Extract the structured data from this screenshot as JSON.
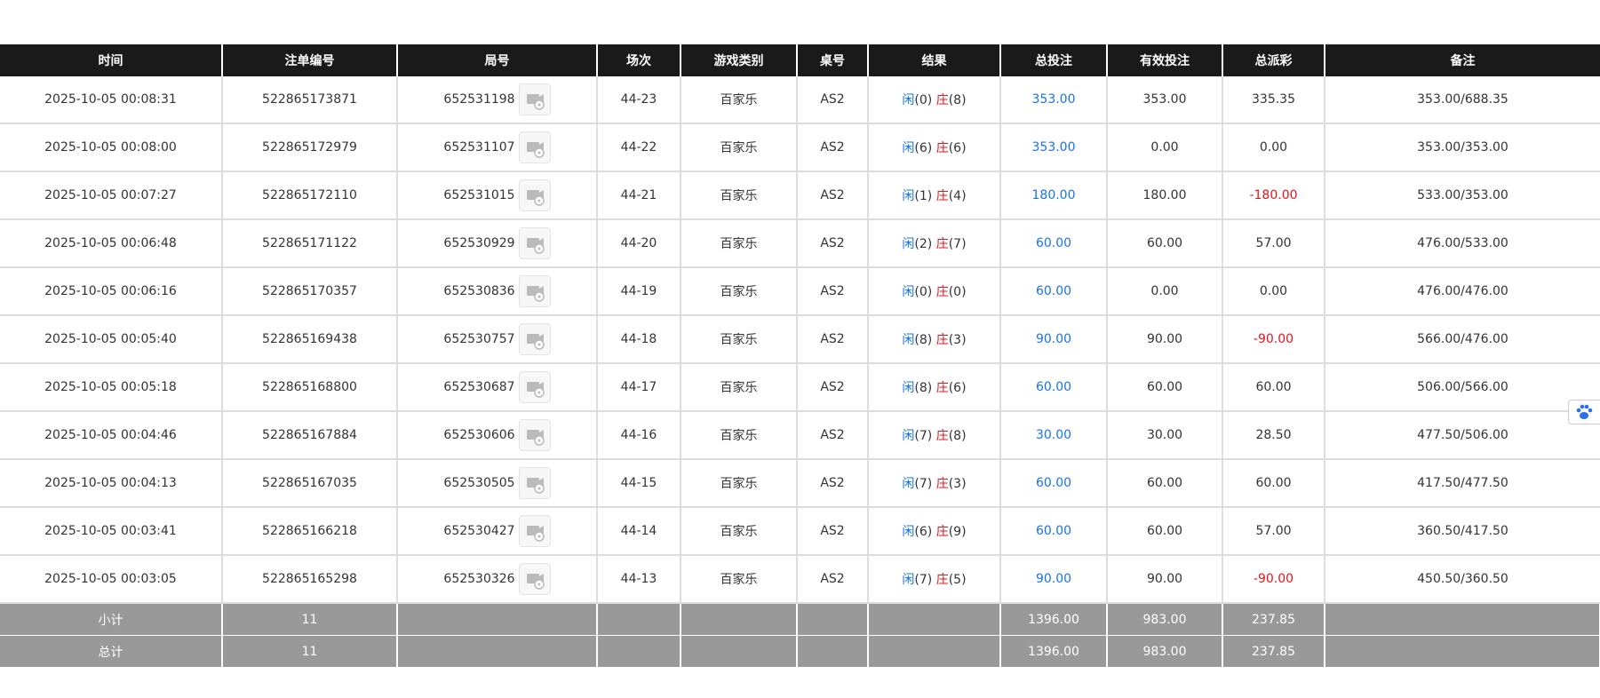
{
  "header": {
    "columns": [
      "时间",
      "注单编号",
      "局号",
      "场次",
      "游戏类别",
      "桌号",
      "结果",
      "总投注",
      "有效投注",
      "总派彩",
      "备注"
    ]
  },
  "rows": [
    {
      "time": "2025-10-05 00:08:31",
      "order_no": "522865173871",
      "round_no": "652531198",
      "session": "44-23",
      "game_type": "百家乐",
      "table": "AS2",
      "result": {
        "player": "闲",
        "player_score": "(0)",
        "banker": "庄",
        "banker_score": "(8)"
      },
      "total_bet": "353.00",
      "valid_bet": "353.00",
      "payout": "335.35",
      "note": "353.00/688.35"
    },
    {
      "time": "2025-10-05 00:08:00",
      "order_no": "522865172979",
      "round_no": "652531107",
      "session": "44-22",
      "game_type": "百家乐",
      "table": "AS2",
      "result": {
        "player": "闲",
        "player_score": "(6)",
        "banker": "庄",
        "banker_score": "(6)"
      },
      "total_bet": "353.00",
      "valid_bet": "0.00",
      "payout": "0.00",
      "note": "353.00/353.00"
    },
    {
      "time": "2025-10-05 00:07:27",
      "order_no": "522865172110",
      "round_no": "652531015",
      "session": "44-21",
      "game_type": "百家乐",
      "table": "AS2",
      "result": {
        "player": "闲",
        "player_score": "(1)",
        "banker": "庄",
        "banker_score": "(4)"
      },
      "total_bet": "180.00",
      "valid_bet": "180.00",
      "payout": "-180.00",
      "note": "533.00/353.00"
    },
    {
      "time": "2025-10-05 00:06:48",
      "order_no": "522865171122",
      "round_no": "652530929",
      "session": "44-20",
      "game_type": "百家乐",
      "table": "AS2",
      "result": {
        "player": "闲",
        "player_score": "(2)",
        "banker": "庄",
        "banker_score": "(7)"
      },
      "total_bet": "60.00",
      "valid_bet": "60.00",
      "payout": "57.00",
      "note": "476.00/533.00"
    },
    {
      "time": "2025-10-05 00:06:16",
      "order_no": "522865170357",
      "round_no": "652530836",
      "session": "44-19",
      "game_type": "百家乐",
      "table": "AS2",
      "result": {
        "player": "闲",
        "player_score": "(0)",
        "banker": "庄",
        "banker_score": "(0)"
      },
      "total_bet": "60.00",
      "valid_bet": "0.00",
      "payout": "0.00",
      "note": "476.00/476.00"
    },
    {
      "time": "2025-10-05 00:05:40",
      "order_no": "522865169438",
      "round_no": "652530757",
      "session": "44-18",
      "game_type": "百家乐",
      "table": "AS2",
      "result": {
        "player": "闲",
        "player_score": "(8)",
        "banker": "庄",
        "banker_score": "(3)"
      },
      "total_bet": "90.00",
      "valid_bet": "90.00",
      "payout": "-90.00",
      "note": "566.00/476.00"
    },
    {
      "time": "2025-10-05 00:05:18",
      "order_no": "522865168800",
      "round_no": "652530687",
      "session": "44-17",
      "game_type": "百家乐",
      "table": "AS2",
      "result": {
        "player": "闲",
        "player_score": "(8)",
        "banker": "庄",
        "banker_score": "(6)"
      },
      "total_bet": "60.00",
      "valid_bet": "60.00",
      "payout": "60.00",
      "note": "506.00/566.00"
    },
    {
      "time": "2025-10-05 00:04:46",
      "order_no": "522865167884",
      "round_no": "652530606",
      "session": "44-16",
      "game_type": "百家乐",
      "table": "AS2",
      "result": {
        "player": "闲",
        "player_score": "(7)",
        "banker": "庄",
        "banker_score": "(8)"
      },
      "total_bet": "30.00",
      "valid_bet": "30.00",
      "payout": "28.50",
      "note": "477.50/506.00"
    },
    {
      "time": "2025-10-05 00:04:13",
      "order_no": "522865167035",
      "round_no": "652530505",
      "session": "44-15",
      "game_type": "百家乐",
      "table": "AS2",
      "result": {
        "player": "闲",
        "player_score": "(7)",
        "banker": "庄",
        "banker_score": "(3)"
      },
      "total_bet": "60.00",
      "valid_bet": "60.00",
      "payout": "60.00",
      "note": "417.50/477.50"
    },
    {
      "time": "2025-10-05 00:03:41",
      "order_no": "522865166218",
      "round_no": "652530427",
      "session": "44-14",
      "game_type": "百家乐",
      "table": "AS2",
      "result": {
        "player": "闲",
        "player_score": "(6)",
        "banker": "庄",
        "banker_score": "(9)"
      },
      "total_bet": "60.00",
      "valid_bet": "60.00",
      "payout": "57.00",
      "note": "360.50/417.50"
    },
    {
      "time": "2025-10-05 00:03:05",
      "order_no": "522865165298",
      "round_no": "652530326",
      "session": "44-13",
      "game_type": "百家乐",
      "table": "AS2",
      "result": {
        "player": "闲",
        "player_score": "(7)",
        "banker": "庄",
        "banker_score": "(5)"
      },
      "total_bet": "90.00",
      "valid_bet": "90.00",
      "payout": "-90.00",
      "note": "450.50/360.50"
    }
  ],
  "summary": [
    {
      "label": "小计",
      "count": "11",
      "total_bet": "1396.00",
      "valid_bet": "983.00",
      "payout": "237.85"
    },
    {
      "label": "总计",
      "count": "11",
      "total_bet": "1396.00",
      "valid_bet": "983.00",
      "payout": "237.85"
    }
  ]
}
